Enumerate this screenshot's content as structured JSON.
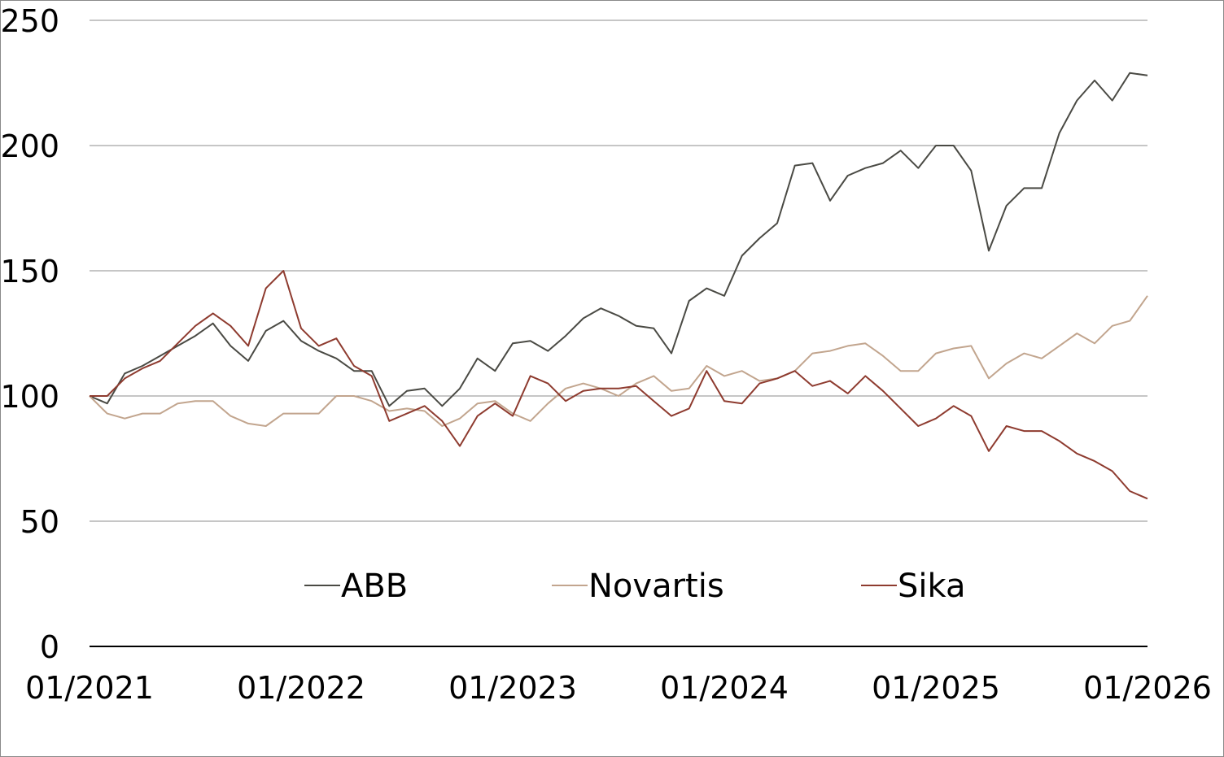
{
  "chart_data": {
    "type": "line",
    "title": "",
    "xlabel": "",
    "ylabel": "",
    "x_unit": "months since 01/2021",
    "xlim": [
      0,
      60
    ],
    "ylim": [
      0,
      250
    ],
    "yticks": [
      "0",
      "50",
      "100",
      "150",
      "200",
      "250"
    ],
    "ytick_values": [
      0,
      50,
      100,
      150,
      200,
      250
    ],
    "xticks": [
      "01/2021",
      "01/2022",
      "01/2023",
      "01/2024",
      "01/2025",
      "01/2026"
    ],
    "xtick_values": [
      0,
      12,
      24,
      36,
      48,
      60
    ],
    "grid": "horizontal",
    "legend_position": "bottom-center",
    "x": [
      0,
      1,
      2,
      3,
      4,
      5,
      6,
      7,
      8,
      9,
      10,
      11,
      12,
      13,
      14,
      15,
      16,
      17,
      18,
      19,
      20,
      21,
      22,
      23,
      24,
      25,
      26,
      27,
      28,
      29,
      30,
      31,
      32,
      33,
      34,
      35,
      36,
      37,
      38,
      39,
      40,
      41,
      42,
      43,
      44,
      45,
      46,
      47,
      48,
      49,
      50,
      51,
      52,
      53,
      54,
      55,
      56,
      57,
      58,
      59,
      60
    ],
    "series": [
      {
        "name": "ABB",
        "color": "#4a4a44",
        "values": [
          100,
          97,
          109,
          112,
          116,
          120,
          124,
          129,
          120,
          114,
          126,
          130,
          122,
          118,
          115,
          110,
          110,
          96,
          102,
          103,
          96,
          103,
          115,
          110,
          121,
          122,
          118,
          124,
          131,
          135,
          132,
          128,
          127,
          117,
          138,
          143,
          140,
          156,
          163,
          169,
          192,
          193,
          178,
          188,
          191,
          193,
          198,
          191,
          200,
          200,
          190,
          158,
          176,
          183,
          183,
          205,
          218,
          226,
          218,
          229,
          228
        ]
      },
      {
        "name": "Novartis",
        "color": "#c2a58e",
        "values": [
          100,
          93,
          91,
          93,
          93,
          97,
          98,
          98,
          92,
          89,
          88,
          93,
          93,
          93,
          100,
          100,
          98,
          94,
          95,
          94,
          88,
          91,
          97,
          98,
          93,
          90,
          97,
          103,
          105,
          103,
          100,
          105,
          108,
          102,
          103,
          112,
          108,
          110,
          106,
          107,
          110,
          117,
          118,
          120,
          121,
          116,
          110,
          110,
          117,
          119,
          120,
          107,
          113,
          117,
          115,
          120,
          125,
          121,
          128,
          130,
          140
        ]
      },
      {
        "name": "Sika",
        "color": "#8e3b2f",
        "values": [
          100,
          100,
          107,
          111,
          114,
          121,
          128,
          133,
          128,
          120,
          143,
          150,
          127,
          120,
          123,
          112,
          108,
          90,
          93,
          96,
          90,
          80,
          92,
          97,
          92,
          108,
          105,
          98,
          102,
          103,
          103,
          104,
          98,
          92,
          95,
          110,
          98,
          97,
          105,
          107,
          110,
          104,
          106,
          101,
          108,
          102,
          95,
          88,
          91,
          96,
          92,
          78,
          88,
          86,
          86,
          82,
          77,
          74,
          70,
          62,
          59
        ]
      }
    ]
  }
}
